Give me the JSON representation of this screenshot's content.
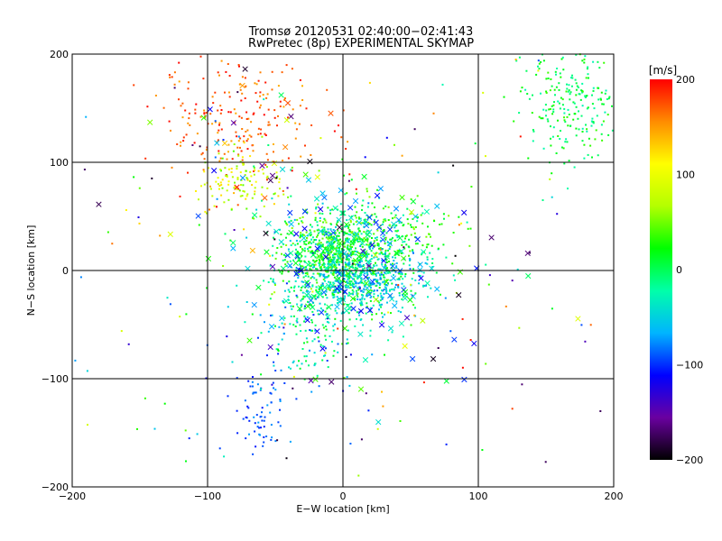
{
  "chart_data": {
    "type": "scatter",
    "title": "Tromsø 20120531 02:40:00−02:41:43",
    "subtitle": "RwPretec (8p) EXPERIMENTAL SKYMAP",
    "xlabel": "E−W location [km]",
    "ylabel": "N−S location [km]",
    "xlim": [
      -200,
      200
    ],
    "ylim": [
      -200,
      200
    ],
    "xticks": [
      -200,
      -100,
      0,
      100,
      200
    ],
    "yticks": [
      -200,
      -100,
      0,
      100,
      200
    ],
    "xtick_labels": [
      "−200",
      "−100",
      "0",
      "100",
      "200"
    ],
    "ytick_labels": [
      "−200",
      "−100",
      "0",
      "100",
      "200"
    ],
    "grid_lines": {
      "x": [
        -100,
        0,
        100
      ],
      "y": [
        -100,
        0,
        100
      ]
    },
    "markers": {
      "small": "dot",
      "large": "x"
    },
    "colorbar": {
      "label": "[m/s]",
      "range": [
        -200,
        200
      ],
      "ticks": [
        200,
        100,
        0,
        -100,
        -200
      ],
      "tick_labels": [
        "200",
        "100",
        "0",
        "−100",
        "−200"
      ],
      "colors": [
        "#000000",
        "#6a00a0",
        "#0000ff",
        "#00b4ff",
        "#00ffaa",
        "#00ff00",
        "#b4ff00",
        "#ffff00",
        "#ff8c00",
        "#ff0000"
      ]
    },
    "clusters": [
      {
        "cx": 0,
        "cy": 5,
        "sx": 25,
        "sy": 25,
        "n": 900,
        "vmin": -60,
        "vmax": 40
      },
      {
        "cx": -10,
        "cy": 20,
        "sx": 15,
        "sy": 15,
        "n": 250,
        "vmin": 0,
        "vmax": 60
      },
      {
        "cx": 20,
        "cy": -10,
        "sx": 20,
        "sy": 15,
        "n": 250,
        "vmin": -90,
        "vmax": -20
      },
      {
        "cx": -75,
        "cy": 140,
        "sx": 30,
        "sy": 30,
        "n": 220,
        "vmin": 140,
        "vmax": 200
      },
      {
        "cx": -75,
        "cy": 80,
        "sx": 15,
        "sy": 15,
        "n": 120,
        "vmin": 40,
        "vmax": 130
      },
      {
        "cx": 170,
        "cy": 150,
        "sx": 20,
        "sy": 25,
        "n": 230,
        "vmin": -30,
        "vmax": 40
      },
      {
        "cx": -60,
        "cy": -130,
        "sx": 10,
        "sy": 20,
        "n": 70,
        "vmin": -110,
        "vmax": -70
      },
      {
        "cx": -30,
        "cy": -60,
        "sx": 20,
        "sy": 30,
        "n": 120,
        "vmin": -100,
        "vmax": 20
      },
      {
        "cx": 40,
        "cy": 40,
        "sx": 20,
        "sy": 15,
        "n": 120,
        "vmin": 0,
        "vmax": 60
      },
      {
        "cx": 0,
        "cy": 0,
        "sx": 110,
        "sy": 110,
        "n": 220,
        "vmin": -200,
        "vmax": 200
      }
    ],
    "x_markers": [
      {
        "x": 0,
        "y": 5,
        "sx": 35,
        "sy": 35,
        "n": 180,
        "vmin": -120,
        "vmax": 40
      },
      {
        "x": -70,
        "y": 120,
        "sx": 40,
        "sy": 50,
        "n": 30,
        "vmin": -200,
        "vmax": 200
      },
      {
        "x": 20,
        "y": -30,
        "sx": 60,
        "sy": 60,
        "n": 40,
        "vmin": -200,
        "vmax": 100
      }
    ]
  }
}
